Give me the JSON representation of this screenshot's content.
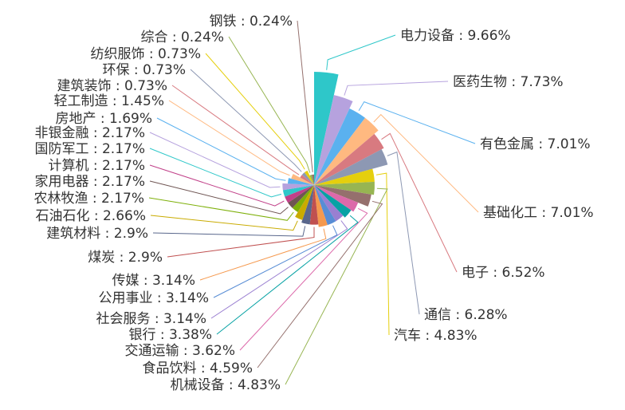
{
  "chart_data": {
    "type": "pie",
    "subtype": "rose",
    "title": "",
    "slices": [
      {
        "label": "电力设备 : 9.66%",
        "category": "电力设备",
        "value": 9.66,
        "color": "#2ec7c9"
      },
      {
        "label": "医药生物 : 7.73%",
        "category": "医药生物",
        "value": 7.73,
        "color": "#b6a2de"
      },
      {
        "label": "有色金属 : 7.01%",
        "category": "有色金属",
        "value": 7.01,
        "color": "#5ab1ef"
      },
      {
        "label": "基础化工 : 7.01%",
        "category": "基础化工",
        "value": 7.01,
        "color": "#ffb980"
      },
      {
        "label": "电子 : 6.52%",
        "category": "电子",
        "value": 6.52,
        "color": "#d87a80"
      },
      {
        "label": "通信 : 6.28%",
        "category": "通信",
        "value": 6.28,
        "color": "#8d98b3"
      },
      {
        "label": "汽车 : 4.83%",
        "category": "汽车",
        "value": 4.83,
        "color": "#e5cf0d"
      },
      {
        "label": "机械设备 : 4.83%",
        "category": "机械设备",
        "value": 4.83,
        "color": "#97b552"
      },
      {
        "label": "食品饮料 : 4.59%",
        "category": "食品饮料",
        "value": 4.59,
        "color": "#95706d"
      },
      {
        "label": "交通运输 : 3.62%",
        "category": "交通运输",
        "value": 3.62,
        "color": "#dc69aa"
      },
      {
        "label": "银行 : 3.38%",
        "category": "银行",
        "value": 3.38,
        "color": "#07a2a4"
      },
      {
        "label": "社会服务 : 3.14%",
        "category": "社会服务",
        "value": 3.14,
        "color": "#9a7fd1"
      },
      {
        "label": "公用事业 : 3.14%",
        "category": "公用事业",
        "value": 3.14,
        "color": "#588dd5"
      },
      {
        "label": "传媒 : 3.14%",
        "category": "传媒",
        "value": 3.14,
        "color": "#f5994e"
      },
      {
        "label": "煤炭 : 2.9%",
        "category": "煤炭",
        "value": 2.9,
        "color": "#c05050"
      },
      {
        "label": "建筑材料 : 2.9%",
        "category": "建筑材料",
        "value": 2.9,
        "color": "#59678c"
      },
      {
        "label": "石油石化 : 2.66%",
        "category": "石油石化",
        "value": 2.66,
        "color": "#c9ab00"
      },
      {
        "label": "农林牧渔 : 2.17%",
        "category": "农林牧渔",
        "value": 2.17,
        "color": "#7eb00a"
      },
      {
        "label": "家用电器 : 2.17%",
        "category": "家用电器",
        "value": 2.17,
        "color": "#6f5553"
      },
      {
        "label": "计算机 : 2.17%",
        "category": "计算机",
        "value": 2.17,
        "color": "#c14089"
      },
      {
        "label": "国防军工 : 2.17%",
        "category": "国防军工",
        "value": 2.17,
        "color": "#2ec7c9"
      },
      {
        "label": "非银金融 : 2.17%",
        "category": "非银金融",
        "value": 2.17,
        "color": "#b6a2de"
      },
      {
        "label": "房地产 : 1.69%",
        "category": "房地产",
        "value": 1.69,
        "color": "#5ab1ef"
      },
      {
        "label": "轻工制造 : 1.45%",
        "category": "轻工制造",
        "value": 1.45,
        "color": "#ffb980"
      },
      {
        "label": "建筑装饰 : 0.73%",
        "category": "建筑装饰",
        "value": 0.73,
        "color": "#d87a80"
      },
      {
        "label": "环保 : 0.73%",
        "category": "环保",
        "value": 0.73,
        "color": "#8d98b3"
      },
      {
        "label": "纺织服饰 : 0.73%",
        "category": "纺织服饰",
        "value": 0.73,
        "color": "#e5cf0d"
      },
      {
        "label": "综合 : 0.24%",
        "category": "综合",
        "value": 0.24,
        "color": "#97b552"
      },
      {
        "label": "钢铁 : 0.24%",
        "category": "钢铁",
        "value": 0.24,
        "color": "#95706d"
      }
    ]
  }
}
